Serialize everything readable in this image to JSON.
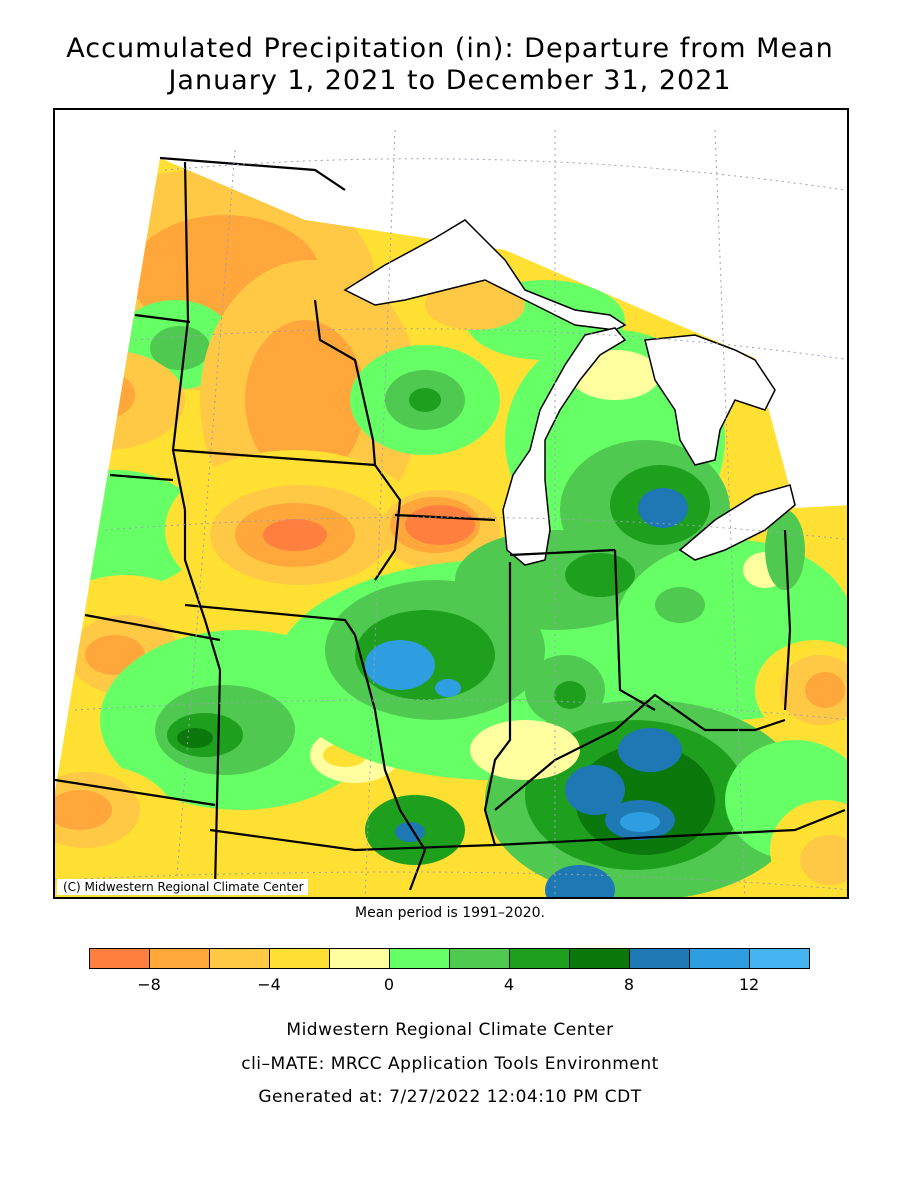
{
  "header": {
    "title_line1": "Accumulated Precipitation (in): Departure from Mean",
    "title_line2": "January 1, 2021 to December 31, 2021"
  },
  "map": {
    "credit": "(C) Midwestern Regional Climate Center",
    "mean_period": "Mean period is 1991–2020."
  },
  "legend": {
    "colors": [
      "#ff7f3f",
      "#ffa73a",
      "#ffc845",
      "#ffe033",
      "#ffff9f",
      "#66ff66",
      "#4fc94f",
      "#1ea01e",
      "#0a780a",
      "#1e78b4",
      "#2e9ee0",
      "#46b4f0"
    ],
    "tick_labels": [
      "−8",
      "−4",
      "0",
      "4",
      "8",
      "12"
    ],
    "tick_values": [
      -8,
      -4,
      0,
      4,
      8,
      12
    ],
    "range": [
      -10,
      14
    ]
  },
  "footer": {
    "line1": "Midwestern Regional Climate Center",
    "line2": "cli–MATE: MRCC Application Tools Environment",
    "line3": "Generated at: 7/27/2022 12:04:10 PM CDT"
  }
}
